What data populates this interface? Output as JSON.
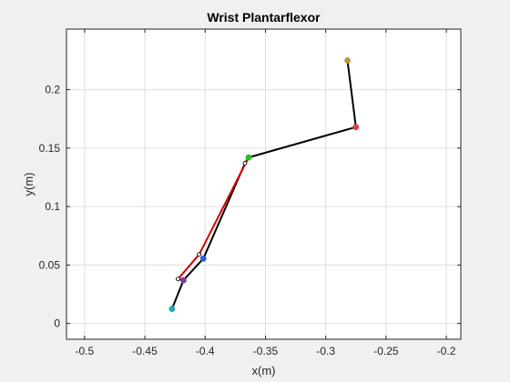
{
  "chart_data": {
    "type": "line",
    "title": "Wrist Plantarflexor",
    "xlabel": "x(m)",
    "ylabel": "y(m)",
    "xlim": [
      -0.515,
      -0.188
    ],
    "ylim": [
      -0.0135,
      0.2518
    ],
    "grid": true,
    "xticks": [
      -0.5,
      -0.45,
      -0.4,
      -0.35,
      -0.3,
      -0.25,
      -0.2
    ],
    "xtick_labels": [
      "-0.5",
      "-0.45",
      "-0.4",
      "-0.35",
      "-0.3",
      "-0.25",
      "-0.2"
    ],
    "yticks": [
      0,
      0.05,
      0.1,
      0.15,
      0.2
    ],
    "ytick_labels": [
      "0",
      "0.05",
      "0.1",
      "0.15",
      "0.2"
    ],
    "series": [
      {
        "color": "#000000",
        "points": [
          [
            -0.282,
            0.225
          ],
          [
            -0.275,
            0.168
          ],
          [
            -0.364,
            0.142
          ],
          [
            -0.367,
            0.137
          ],
          [
            -0.4015,
            0.0555
          ],
          [
            -0.418,
            0.037
          ],
          [
            -0.4275,
            0.0125
          ]
        ]
      },
      {
        "color": "#d40000",
        "points": [
          [
            -0.364,
            0.142
          ],
          [
            -0.405,
            0.059
          ],
          [
            -0.4225,
            0.038
          ],
          [
            -0.418,
            0.037
          ]
        ]
      }
    ],
    "markers": [
      {
        "x": -0.282,
        "y": 0.225,
        "color": "#b8963a",
        "size": "filled"
      },
      {
        "x": -0.275,
        "y": 0.168,
        "color": "#e04040",
        "size": "filled"
      },
      {
        "x": -0.364,
        "y": 0.142,
        "color": "#22c322",
        "size": "filled"
      },
      {
        "x": -0.367,
        "y": 0.137,
        "color": "#c04040",
        "size": "small"
      },
      {
        "x": -0.405,
        "y": 0.059,
        "color": "#c04040",
        "size": "small"
      },
      {
        "x": -0.4015,
        "y": 0.0555,
        "color": "#2a63d6",
        "size": "filled"
      },
      {
        "x": -0.4225,
        "y": 0.038,
        "color": "#c04040",
        "size": "small"
      },
      {
        "x": -0.418,
        "y": 0.037,
        "color": "#7a3aa0",
        "size": "filled"
      },
      {
        "x": -0.4275,
        "y": 0.0125,
        "color": "#1fa6b8",
        "size": "filled"
      }
    ]
  }
}
